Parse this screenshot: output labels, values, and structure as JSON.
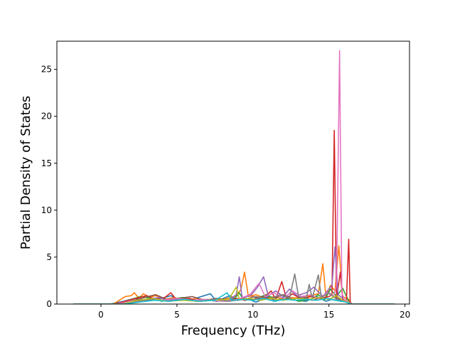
{
  "chart_data": {
    "type": "line",
    "title": "",
    "xlabel": "Frequency (THz)",
    "ylabel": "Partial Density of States",
    "xlim": [
      -2.9,
      20.3
    ],
    "ylim": [
      0,
      28.0
    ],
    "x_ticks": [
      0,
      5,
      10,
      15,
      20
    ],
    "y_ticks": [
      0,
      5,
      10,
      15,
      20,
      25
    ],
    "grid": false,
    "legend": "none",
    "series": [
      {
        "color": "#1f77b4",
        "points": [
          [
            -1.8,
            0
          ],
          [
            0.6,
            0
          ],
          [
            1.5,
            0.3
          ],
          [
            2.2,
            0.6
          ],
          [
            3.0,
            0.4
          ],
          [
            4.0,
            0.6
          ],
          [
            4.6,
            0.9
          ],
          [
            5.2,
            0.4
          ],
          [
            6.0,
            0.5
          ],
          [
            7.2,
            1.1
          ],
          [
            7.6,
            0.3
          ],
          [
            8.5,
            0.9
          ],
          [
            9.0,
            0.4
          ],
          [
            9.6,
            0.6
          ],
          [
            10.2,
            0.2
          ],
          [
            11.0,
            0.8
          ],
          [
            11.5,
            0.3
          ],
          [
            12.2,
            0.9
          ],
          [
            12.8,
            0.4
          ],
          [
            13.5,
            0.3
          ],
          [
            14.2,
            0.8
          ],
          [
            14.8,
            0.3
          ],
          [
            15.2,
            0.5
          ],
          [
            15.8,
            0.3
          ],
          [
            16.3,
            0.2
          ],
          [
            16.5,
            0
          ],
          [
            19.3,
            0
          ]
        ]
      },
      {
        "color": "#ff7f0e",
        "points": [
          [
            -1.8,
            0
          ],
          [
            0.8,
            0
          ],
          [
            1.3,
            0.5
          ],
          [
            1.6,
            0.8
          ],
          [
            2.0,
            0.9
          ],
          [
            2.2,
            1.2
          ],
          [
            2.5,
            0.6
          ],
          [
            2.8,
            1.1
          ],
          [
            3.2,
            0.7
          ],
          [
            3.6,
            0.9
          ],
          [
            4.2,
            0.5
          ],
          [
            4.8,
            0.7
          ],
          [
            5.5,
            0.4
          ],
          [
            6.3,
            0.6
          ],
          [
            7.0,
            0.4
          ],
          [
            8.0,
            0.5
          ],
          [
            8.8,
            0.8
          ],
          [
            9.2,
            1.5
          ],
          [
            9.45,
            3.4
          ],
          [
            9.7,
            0.8
          ],
          [
            10.2,
            1.0
          ],
          [
            10.8,
            0.6
          ],
          [
            11.4,
            0.8
          ],
          [
            12.0,
            0.5
          ],
          [
            12.6,
            0.7
          ],
          [
            13.2,
            0.6
          ],
          [
            13.8,
            0.9
          ],
          [
            14.3,
            1.1
          ],
          [
            14.6,
            4.3
          ],
          [
            14.8,
            0.8
          ],
          [
            15.1,
            2.0
          ],
          [
            15.4,
            1.4
          ],
          [
            15.65,
            6.2
          ],
          [
            15.9,
            0.8
          ],
          [
            16.3,
            0.5
          ],
          [
            16.5,
            0
          ],
          [
            19.3,
            0
          ]
        ]
      },
      {
        "color": "#2ca02c",
        "points": [
          [
            -1.8,
            0
          ],
          [
            1.0,
            0
          ],
          [
            1.8,
            0.4
          ],
          [
            2.6,
            0.8
          ],
          [
            3.4,
            0.6
          ],
          [
            4.0,
            0.3
          ],
          [
            4.5,
            0.5
          ],
          [
            5.4,
            0.7
          ],
          [
            6.2,
            0.3
          ],
          [
            7.0,
            0.5
          ],
          [
            8.0,
            0.3
          ],
          [
            8.8,
            0.6
          ],
          [
            9.1,
            1.2
          ],
          [
            9.4,
            0.4
          ],
          [
            10.0,
            0.5
          ],
          [
            10.9,
            1.0
          ],
          [
            11.6,
            0.4
          ],
          [
            12.4,
            0.6
          ],
          [
            13.0,
            0.3
          ],
          [
            13.8,
            0.5
          ],
          [
            14.3,
            1.0
          ],
          [
            14.7,
            0.4
          ],
          [
            15.1,
            1.6
          ],
          [
            15.5,
            0.8
          ],
          [
            15.9,
            1.7
          ],
          [
            16.3,
            0.3
          ],
          [
            16.5,
            0
          ],
          [
            19.3,
            0
          ]
        ]
      },
      {
        "color": "#d62728",
        "points": [
          [
            -1.8,
            0
          ],
          [
            0.9,
            0
          ],
          [
            1.6,
            0.3
          ],
          [
            2.3,
            0.6
          ],
          [
            3.0,
            0.9
          ],
          [
            3.6,
            0.5
          ],
          [
            4.2,
            0.7
          ],
          [
            4.6,
            1.2
          ],
          [
            5.0,
            0.4
          ],
          [
            5.8,
            0.6
          ],
          [
            6.6,
            0.3
          ],
          [
            7.4,
            0.5
          ],
          [
            8.2,
            0.3
          ],
          [
            8.9,
            0.6
          ],
          [
            9.5,
            0.4
          ],
          [
            10.0,
            0.8
          ],
          [
            10.6,
            0.5
          ],
          [
            11.2,
            1.4
          ],
          [
            11.5,
            0.5
          ],
          [
            11.9,
            2.4
          ],
          [
            12.2,
            0.6
          ],
          [
            12.6,
            1.1
          ],
          [
            13.2,
            0.5
          ],
          [
            13.8,
            0.8
          ],
          [
            14.4,
            0.6
          ],
          [
            15.0,
            0.8
          ],
          [
            15.2,
            1.0
          ],
          [
            15.35,
            18.5
          ],
          [
            15.5,
            0.6
          ],
          [
            15.75,
            3.4
          ],
          [
            15.9,
            0.5
          ],
          [
            16.15,
            0.3
          ],
          [
            16.3,
            6.9
          ],
          [
            16.4,
            0.2
          ],
          [
            16.5,
            0
          ],
          [
            19.3,
            0
          ]
        ]
      },
      {
        "color": "#9467bd",
        "points": [
          [
            -1.8,
            0
          ],
          [
            1.1,
            0
          ],
          [
            2.0,
            0.3
          ],
          [
            2.9,
            0.5
          ],
          [
            3.8,
            0.7
          ],
          [
            4.4,
            0.4
          ],
          [
            5.2,
            0.6
          ],
          [
            6.0,
            0.4
          ],
          [
            6.8,
            0.5
          ],
          [
            7.6,
            0.3
          ],
          [
            8.4,
            0.4
          ],
          [
            8.9,
            1.0
          ],
          [
            9.1,
            2.9
          ],
          [
            9.3,
            0.6
          ],
          [
            9.9,
            1.0
          ],
          [
            10.3,
            1.8
          ],
          [
            10.7,
            2.9
          ],
          [
            11.0,
            0.9
          ],
          [
            11.5,
            1.4
          ],
          [
            12.0,
            0.8
          ],
          [
            12.4,
            1.6
          ],
          [
            12.9,
            0.9
          ],
          [
            13.5,
            1.2
          ],
          [
            14.0,
            1.8
          ],
          [
            14.6,
            0.8
          ],
          [
            15.2,
            2.0
          ],
          [
            15.4,
            6.1
          ],
          [
            15.6,
            1.0
          ],
          [
            16.0,
            0.5
          ],
          [
            16.5,
            0
          ],
          [
            19.3,
            0
          ]
        ]
      },
      {
        "color": "#8c564b",
        "points": [
          [
            -1.8,
            0
          ],
          [
            1.2,
            0
          ],
          [
            2.2,
            0.4
          ],
          [
            3.1,
            0.8
          ],
          [
            3.6,
            1.0
          ],
          [
            4.3,
            0.5
          ],
          [
            5.1,
            0.6
          ],
          [
            6.0,
            0.8
          ],
          [
            6.8,
            0.4
          ],
          [
            7.6,
            0.6
          ],
          [
            8.5,
            0.4
          ],
          [
            9.2,
            0.6
          ],
          [
            10.0,
            0.5
          ],
          [
            10.6,
            0.8
          ],
          [
            11.3,
            0.5
          ],
          [
            12.0,
            1.0
          ],
          [
            12.6,
            0.5
          ],
          [
            13.3,
            0.8
          ],
          [
            13.9,
            0.4
          ],
          [
            14.5,
            0.7
          ],
          [
            15.0,
            0.5
          ],
          [
            15.4,
            0.8
          ],
          [
            15.8,
            0.4
          ],
          [
            16.5,
            0
          ],
          [
            19.3,
            0
          ]
        ]
      },
      {
        "color": "#e377c2",
        "points": [
          [
            -1.8,
            0
          ],
          [
            1.0,
            0
          ],
          [
            2.0,
            0.3
          ],
          [
            3.0,
            0.5
          ],
          [
            4.0,
            0.4
          ],
          [
            5.0,
            0.6
          ],
          [
            6.0,
            0.4
          ],
          [
            7.0,
            0.5
          ],
          [
            8.0,
            0.3
          ],
          [
            9.0,
            0.5
          ],
          [
            9.8,
            1.0
          ],
          [
            10.4,
            2.2
          ],
          [
            10.8,
            0.8
          ],
          [
            11.4,
            1.2
          ],
          [
            12.0,
            0.6
          ],
          [
            12.6,
            1.4
          ],
          [
            13.2,
            0.8
          ],
          [
            13.8,
            1.0
          ],
          [
            14.3,
            0.6
          ],
          [
            14.9,
            1.2
          ],
          [
            15.3,
            0.8
          ],
          [
            15.5,
            2.0
          ],
          [
            15.7,
            27.0
          ],
          [
            15.85,
            1.2
          ],
          [
            16.0,
            0.5
          ],
          [
            16.5,
            0
          ],
          [
            19.3,
            0
          ]
        ]
      },
      {
        "color": "#7f7f7f",
        "points": [
          [
            -1.8,
            0
          ],
          [
            1.3,
            0
          ],
          [
            2.4,
            0.3
          ],
          [
            3.4,
            0.5
          ],
          [
            4.4,
            0.3
          ],
          [
            5.4,
            0.5
          ],
          [
            6.4,
            0.3
          ],
          [
            7.4,
            0.5
          ],
          [
            8.4,
            0.3
          ],
          [
            9.4,
            0.5
          ],
          [
            10.2,
            0.8
          ],
          [
            11.0,
            0.5
          ],
          [
            11.8,
            1.0
          ],
          [
            12.4,
            0.6
          ],
          [
            12.75,
            3.2
          ],
          [
            13.0,
            0.8
          ],
          [
            13.5,
            0.5
          ],
          [
            13.7,
            2.1
          ],
          [
            13.9,
            0.6
          ],
          [
            14.3,
            3.1
          ],
          [
            14.5,
            0.7
          ],
          [
            15.0,
            1.2
          ],
          [
            15.5,
            0.5
          ],
          [
            16.0,
            0.3
          ],
          [
            16.5,
            0
          ],
          [
            19.3,
            0
          ]
        ]
      },
      {
        "color": "#bcbd22",
        "points": [
          [
            -1.8,
            0
          ],
          [
            1.4,
            0
          ],
          [
            2.4,
            0.4
          ],
          [
            3.4,
            0.6
          ],
          [
            4.4,
            0.3
          ],
          [
            5.4,
            0.4
          ],
          [
            6.4,
            0.3
          ],
          [
            7.4,
            0.4
          ],
          [
            8.4,
            0.5
          ],
          [
            8.9,
            1.8
          ],
          [
            9.1,
            0.5
          ],
          [
            9.8,
            0.6
          ],
          [
            10.5,
            0.4
          ],
          [
            11.2,
            0.6
          ],
          [
            12.0,
            0.4
          ],
          [
            12.8,
            0.6
          ],
          [
            13.6,
            0.5
          ],
          [
            14.3,
            0.7
          ],
          [
            15.0,
            0.5
          ],
          [
            15.5,
            0.9
          ],
          [
            15.9,
            0.4
          ],
          [
            16.5,
            0
          ],
          [
            19.3,
            0
          ]
        ]
      },
      {
        "color": "#17becf",
        "points": [
          [
            -1.8,
            0
          ],
          [
            1.5,
            0
          ],
          [
            2.5,
            0.2
          ],
          [
            3.5,
            0.4
          ],
          [
            4.5,
            0.3
          ],
          [
            5.5,
            0.5
          ],
          [
            6.5,
            0.3
          ],
          [
            7.5,
            0.4
          ],
          [
            8.3,
            1.2
          ],
          [
            8.6,
            0.4
          ],
          [
            9.3,
            0.5
          ],
          [
            10.0,
            0.4
          ],
          [
            10.7,
            0.6
          ],
          [
            11.4,
            0.3
          ],
          [
            12.1,
            0.5
          ],
          [
            12.8,
            0.4
          ],
          [
            13.5,
            0.5
          ],
          [
            14.2,
            0.4
          ],
          [
            14.9,
            0.6
          ],
          [
            15.4,
            0.4
          ],
          [
            15.9,
            0.3
          ],
          [
            16.5,
            0
          ],
          [
            19.3,
            0
          ]
        ]
      }
    ]
  }
}
